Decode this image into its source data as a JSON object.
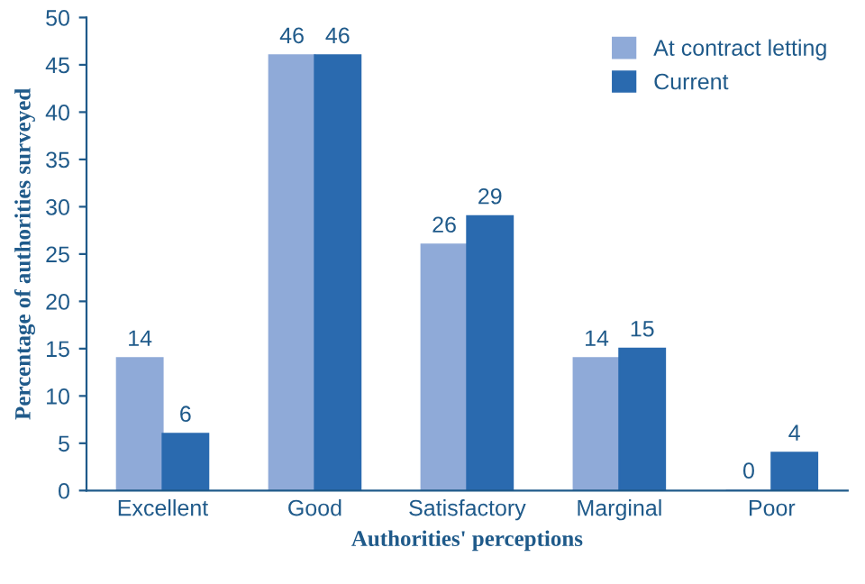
{
  "chart_data": {
    "type": "bar",
    "xlabel": "Authorities' perceptions",
    "ylabel": "Percentage of authorities surveyed",
    "categories": [
      "Excellent",
      "Good",
      "Satisfactory",
      "Marginal",
      "Poor"
    ],
    "series": [
      {
        "name": "At contract letting",
        "color": "#8faad8",
        "values": [
          14,
          46,
          26,
          14,
          0
        ]
      },
      {
        "name": "Current",
        "color": "#2a6aaf",
        "values": [
          6,
          46,
          29,
          15,
          4
        ]
      }
    ],
    "ylim": [
      0,
      50
    ],
    "yticks": [
      0,
      5,
      10,
      15,
      20,
      25,
      30,
      35,
      40,
      45,
      50
    ],
    "data_labels": true,
    "legend": "top right",
    "grid": false
  }
}
